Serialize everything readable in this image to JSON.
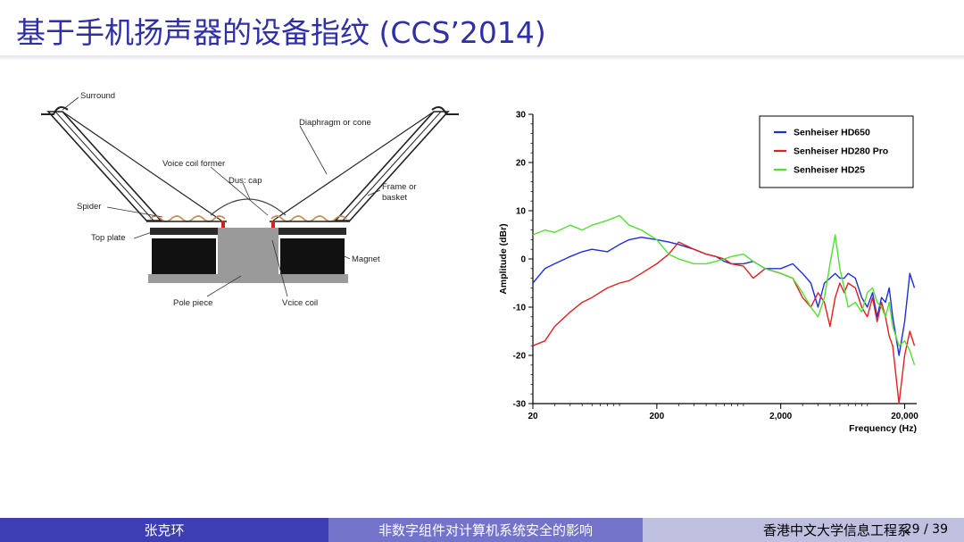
{
  "slide": {
    "title": "基于手机扬声器的设备指纹 (CCS’2014)"
  },
  "speaker_diagram": {
    "labels": {
      "surround": "Surround",
      "diaphragm": "Diaphragm or cone",
      "voice_coil_former": "Voice coil former",
      "dust_cap": "Dus: cap",
      "frame_1": "Frame or",
      "frame_2": "basket",
      "spider": "Spider",
      "top_plate": "Top plate",
      "magnet": "Magnet",
      "pole_piece": "Pole piece",
      "voice_coil": "Vcice coil"
    }
  },
  "chart_data": {
    "type": "line",
    "title": "",
    "xlabel": "Frequency (Hz)",
    "ylabel": "Amplitude (dBr)",
    "xscale": "log",
    "xlim": [
      20,
      25000
    ],
    "ylim": [
      -30,
      30
    ],
    "xticks": [
      20,
      200,
      2000,
      20000
    ],
    "xtick_labels": [
      "20",
      "200",
      "2,000",
      "20,000"
    ],
    "yticks": [
      30,
      20,
      10,
      0,
      -10,
      -20,
      -30
    ],
    "legend_position": "top-right",
    "grid": false,
    "series": [
      {
        "name": "Senheiser HD650",
        "color": "#1b2fd6",
        "x": [
          20,
          25,
          30,
          40,
          50,
          60,
          80,
          100,
          120,
          150,
          200,
          250,
          300,
          400,
          500,
          600,
          700,
          800,
          1000,
          1200,
          1500,
          2000,
          2500,
          3000,
          3500,
          4000,
          4500,
          5000,
          5500,
          6000,
          6500,
          7000,
          8000,
          9000,
          10000,
          11000,
          12000,
          13000,
          14000,
          15000,
          16000,
          18000,
          20000,
          22000,
          24000
        ],
        "y": [
          -5,
          -2,
          -1,
          0.5,
          1.5,
          2,
          1.5,
          3,
          4,
          4.5,
          4,
          3.5,
          3,
          2,
          1,
          0.5,
          -0.5,
          -1,
          -1,
          -0.5,
          -2,
          -2,
          -1,
          -3,
          -5,
          -10,
          -5,
          -4,
          -3,
          -4,
          -4,
          -3,
          -4,
          -8,
          -10,
          -7,
          -12,
          -8,
          -9,
          -6,
          -12,
          -20,
          -13,
          -3,
          -6
        ]
      },
      {
        "name": "Senheiser HD280 Pro",
        "color": "#e02020",
        "x": [
          20,
          25,
          30,
          40,
          50,
          60,
          80,
          100,
          120,
          150,
          200,
          250,
          300,
          400,
          500,
          600,
          700,
          800,
          1000,
          1200,
          1500,
          2000,
          2500,
          3000,
          3500,
          4000,
          4500,
          5000,
          5500,
          6000,
          6500,
          7000,
          8000,
          9000,
          10000,
          11000,
          12000,
          13000,
          14000,
          15000,
          16000,
          18000,
          20000,
          22000,
          24000
        ],
        "y": [
          -18,
          -17,
          -14,
          -11,
          -9,
          -8,
          -6,
          -5,
          -4.5,
          -3,
          -1,
          1,
          3.5,
          2,
          1,
          0.5,
          0,
          -1,
          -1.5,
          -4,
          -2,
          -3,
          -4,
          -8,
          -10,
          -7,
          -9,
          -14,
          -8,
          -5,
          -7,
          -5,
          -6,
          -10,
          -12,
          -8,
          -13,
          -9,
          -12,
          -16,
          -18,
          -30,
          -20,
          -15,
          -18
        ]
      },
      {
        "name": "Senheiser HD25",
        "color": "#55dd33",
        "x": [
          20,
          25,
          30,
          40,
          50,
          60,
          80,
          100,
          120,
          150,
          200,
          250,
          300,
          400,
          500,
          600,
          700,
          800,
          1000,
          1200,
          1500,
          2000,
          2500,
          3000,
          3500,
          4000,
          4500,
          5000,
          5500,
          6000,
          6500,
          7000,
          8000,
          9000,
          10000,
          11000,
          12000,
          13000,
          14000,
          15000,
          16000,
          18000,
          20000,
          22000,
          24000
        ],
        "y": [
          5,
          6,
          5.5,
          7,
          6,
          7,
          8,
          9,
          7,
          6,
          4,
          1,
          0,
          -1,
          -1,
          -0.5,
          0,
          0.5,
          1,
          -0.5,
          -2,
          -3,
          -4,
          -7,
          -10,
          -12,
          -8,
          -1,
          5,
          -2,
          -6,
          -10,
          -9,
          -11,
          -7,
          -6,
          -9,
          -10,
          -12,
          -9,
          -14,
          -18,
          -17,
          -19,
          -22
        ]
      }
    ]
  },
  "footer": {
    "author": "张克环",
    "talk": "非数字组件对计算机系统安全的影响",
    "institution": "香港中文大学信息工程系",
    "page": "29 / 39"
  }
}
